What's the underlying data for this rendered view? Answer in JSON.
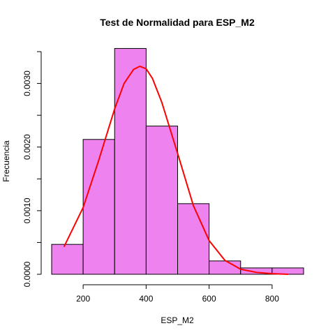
{
  "chart_data": {
    "type": "bar",
    "title": "Test de Normalidad para  ESP_M2",
    "xlabel": "ESP_M2",
    "ylabel": "Frecuencia",
    "xlim": [
      100,
      900
    ],
    "ylim": [
      0,
      0.0035
    ],
    "x_ticks": [
      200,
      400,
      600,
      800
    ],
    "x_tick_labels": [
      "200",
      "400",
      "600",
      "800"
    ],
    "y_ticks": [
      0,
      0.001,
      0.002,
      0.003
    ],
    "y_minor_ticks": [
      0.0005,
      0.0015,
      0.0025,
      0.0035
    ],
    "y_tick_labels": [
      "0.0000",
      "0.0010",
      "0.0020",
      "0.0030"
    ],
    "bins": [
      {
        "from": 100,
        "to": 200,
        "density": 0.00047
      },
      {
        "from": 200,
        "to": 300,
        "density": 0.00212
      },
      {
        "from": 300,
        "to": 400,
        "density": 0.00355
      },
      {
        "from": 400,
        "to": 500,
        "density": 0.00233
      },
      {
        "from": 500,
        "to": 600,
        "density": 0.00111
      },
      {
        "from": 600,
        "to": 700,
        "density": 0.00021
      },
      {
        "from": 700,
        "to": 800,
        "density": 0.0001
      },
      {
        "from": 800,
        "to": 900,
        "density": 0.0001
      }
    ],
    "density_curve": {
      "x": [
        140,
        200,
        250,
        300,
        330,
        360,
        380,
        400,
        420,
        450,
        500,
        550,
        600,
        650,
        700,
        750,
        800,
        850
      ],
      "y": [
        0.00044,
        0.00105,
        0.0018,
        0.0026,
        0.003,
        0.00322,
        0.00327,
        0.00323,
        0.00308,
        0.0027,
        0.0019,
        0.00108,
        0.00053,
        0.00022,
        8e-05,
        3e-05,
        1e-05,
        0.0
      ]
    },
    "colors": {
      "bar_fill": "#ee82ee",
      "bar_stroke": "#000000",
      "curve": "#ff0000"
    },
    "grid": false,
    "legend": "none"
  }
}
